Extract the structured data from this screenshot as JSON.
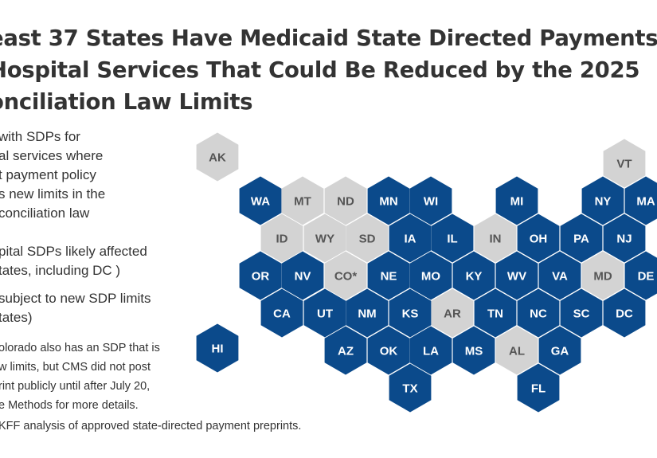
{
  "title": {
    "lines": [
      "east 37 States Have Medicaid State Directed Payments",
      "Hospital Services That Could Be Reduced by the 2025",
      "onciliation Law Limits"
    ]
  },
  "legend": {
    "items": [
      {
        "lines": [
          "with SDPs for",
          "al services where",
          "t payment policy",
          "s new limits in the",
          "conciliation law"
        ]
      },
      {
        "lines": [
          "pital SDPs likely affected",
          "tates, including DC )"
        ]
      },
      {
        "lines": [
          "subject to new SDP limits",
          "tates)"
        ]
      }
    ]
  },
  "note": {
    "lines": [
      "olorado also has an SDP that is",
      "w limits, but CMS did not post",
      "rint publicly until after July 20,",
      "e Methods for more details."
    ]
  },
  "source": "KFF analysis of approved state-directed payment preprints.",
  "colors": {
    "affected": "#0b4a8b",
    "not_affected": "#d3d3d3",
    "label_affected": "#ffffff",
    "label_not_affected": "#555555"
  },
  "states": [
    {
      "abbr": "AK",
      "status": "not_affected"
    },
    {
      "abbr": "VT",
      "status": "not_affected"
    },
    {
      "abbr": "WA",
      "status": "affected"
    },
    {
      "abbr": "MT",
      "status": "not_affected"
    },
    {
      "abbr": "ND",
      "status": "not_affected"
    },
    {
      "abbr": "MN",
      "status": "affected"
    },
    {
      "abbr": "WI",
      "status": "affected"
    },
    {
      "abbr": "MI",
      "status": "affected"
    },
    {
      "abbr": "NY",
      "status": "affected"
    },
    {
      "abbr": "MA",
      "status": "affected"
    },
    {
      "abbr": "ID",
      "status": "not_affected"
    },
    {
      "abbr": "WY",
      "status": "not_affected"
    },
    {
      "abbr": "SD",
      "status": "not_affected"
    },
    {
      "abbr": "IA",
      "status": "affected"
    },
    {
      "abbr": "IL",
      "status": "affected"
    },
    {
      "abbr": "IN",
      "status": "not_affected"
    },
    {
      "abbr": "OH",
      "status": "affected"
    },
    {
      "abbr": "PA",
      "status": "affected"
    },
    {
      "abbr": "NJ",
      "status": "affected"
    },
    {
      "abbr": "OR",
      "status": "affected"
    },
    {
      "abbr": "NV",
      "status": "affected"
    },
    {
      "abbr": "CO*",
      "status": "not_affected"
    },
    {
      "abbr": "NE",
      "status": "affected"
    },
    {
      "abbr": "MO",
      "status": "affected"
    },
    {
      "abbr": "KY",
      "status": "affected"
    },
    {
      "abbr": "WV",
      "status": "affected"
    },
    {
      "abbr": "VA",
      "status": "affected"
    },
    {
      "abbr": "MD",
      "status": "not_affected"
    },
    {
      "abbr": "DE",
      "status": "affected"
    },
    {
      "abbr": "CA",
      "status": "affected"
    },
    {
      "abbr": "UT",
      "status": "affected"
    },
    {
      "abbr": "NM",
      "status": "affected"
    },
    {
      "abbr": "KS",
      "status": "affected"
    },
    {
      "abbr": "AR",
      "status": "not_affected"
    },
    {
      "abbr": "TN",
      "status": "affected"
    },
    {
      "abbr": "NC",
      "status": "affected"
    },
    {
      "abbr": "SC",
      "status": "affected"
    },
    {
      "abbr": "DC",
      "status": "affected"
    },
    {
      "abbr": "HI",
      "status": "affected"
    },
    {
      "abbr": "AZ",
      "status": "affected"
    },
    {
      "abbr": "OK",
      "status": "affected"
    },
    {
      "abbr": "LA",
      "status": "affected"
    },
    {
      "abbr": "MS",
      "status": "affected"
    },
    {
      "abbr": "AL",
      "status": "not_affected"
    },
    {
      "abbr": "GA",
      "status": "affected"
    },
    {
      "abbr": "TX",
      "status": "affected"
    },
    {
      "abbr": "FL",
      "status": "affected"
    }
  ]
}
